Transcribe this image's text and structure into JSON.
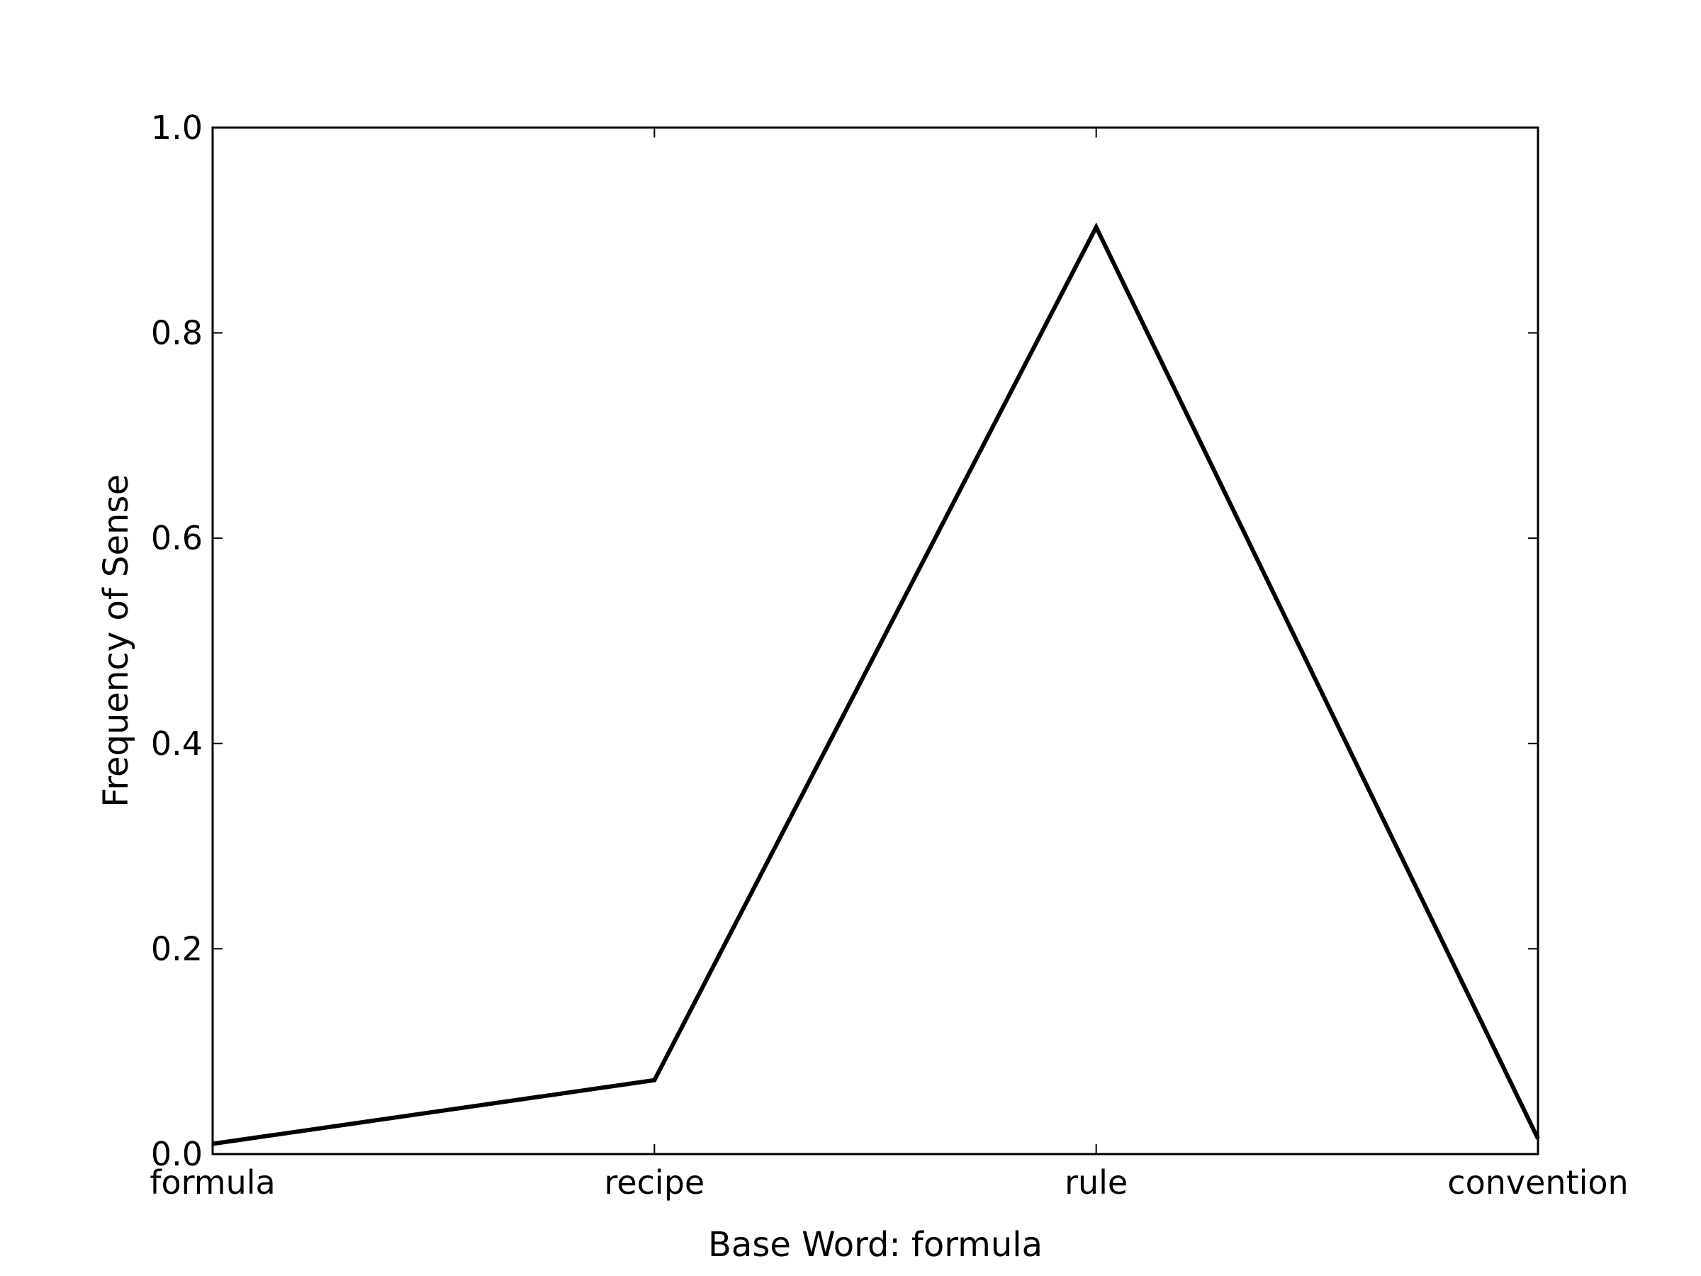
{
  "chart_data": {
    "type": "line",
    "categories": [
      "formula",
      "recipe",
      "rule",
      "convention"
    ],
    "series": [
      {
        "values": [
          0.01,
          0.072,
          0.903,
          0.015
        ]
      }
    ],
    "title": "",
    "xlabel": "Base Word: formula",
    "ylabel": "Frequency of Sense",
    "ylim": [
      0.0,
      1.0
    ],
    "yticks": [
      0.0,
      0.2,
      0.4,
      0.6,
      0.8,
      1.0
    ],
    "ytick_labels": [
      "0.0",
      "0.2",
      "0.4",
      "0.6",
      "0.8",
      "1.0"
    ],
    "grid": false,
    "legend": "none",
    "line_color": "#000000"
  }
}
